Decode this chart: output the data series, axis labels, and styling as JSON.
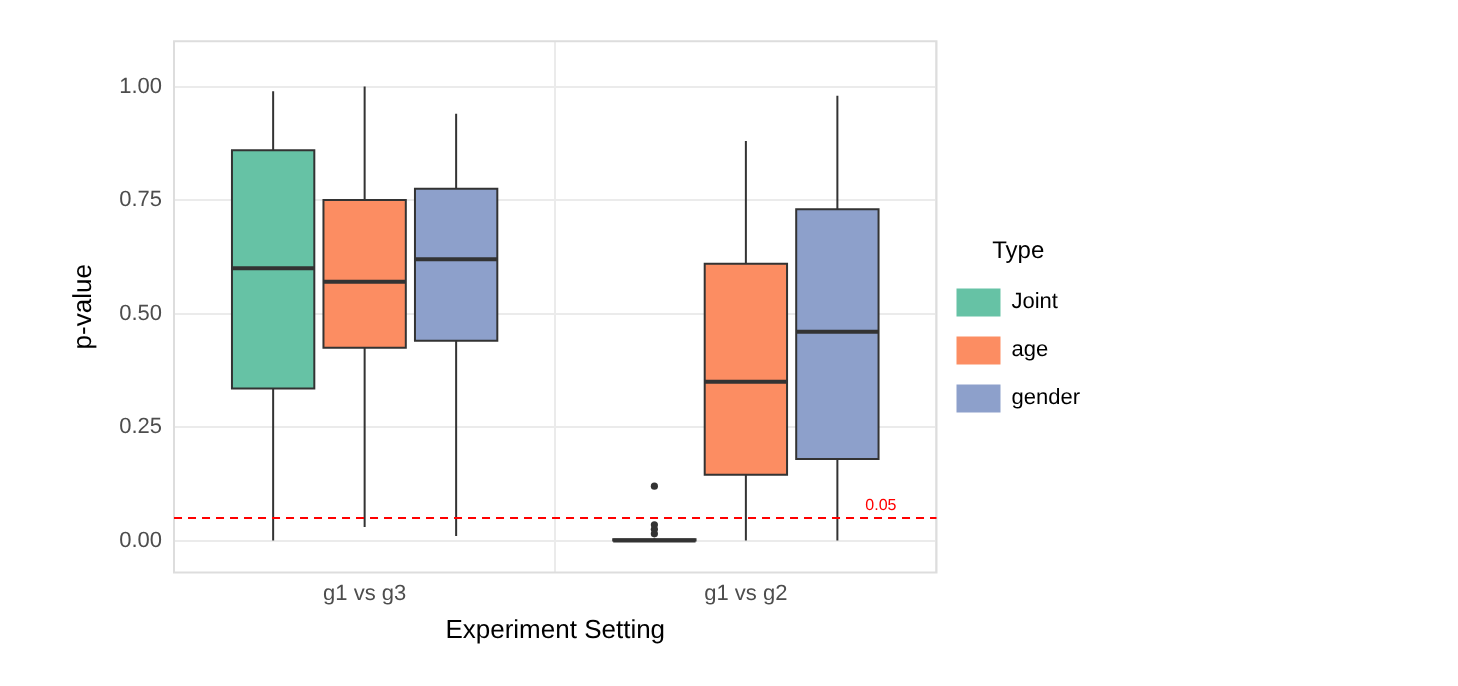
{
  "chart_data": {
    "type": "box",
    "xlabel": "Experiment Setting",
    "ylabel": "p-value",
    "legend_title": "Type",
    "categories": [
      "g1 vs g3",
      "g1 vs g2"
    ],
    "series": [
      {
        "name": "Joint",
        "color": "#66c2a5",
        "boxes": [
          {
            "low": 0,
            "q1": 0.335,
            "median": 0.6,
            "q3": 0.86,
            "high": 0.99
          },
          {
            "low": 0,
            "q1": 0,
            "median": 0,
            "q3": 0.003,
            "high": 0.005,
            "outliers": [
              0.12,
              0.035,
              0.025,
              0.015
            ]
          }
        ]
      },
      {
        "name": "age",
        "color": "#fc8d62",
        "boxes": [
          {
            "low": 0.03,
            "q1": 0.425,
            "median": 0.57,
            "q3": 0.75,
            "high": 1.0
          },
          {
            "low": 0,
            "q1": 0.145,
            "median": 0.35,
            "q3": 0.61,
            "high": 0.88
          }
        ]
      },
      {
        "name": "gender",
        "color": "#8da0cb",
        "boxes": [
          {
            "low": 0.01,
            "q1": 0.44,
            "median": 0.62,
            "q3": 0.775,
            "high": 0.94
          },
          {
            "low": 0,
            "q1": 0.18,
            "median": 0.46,
            "q3": 0.73,
            "high": 0.98
          }
        ]
      }
    ],
    "ylim": [
      -0.07,
      1.1
    ],
    "yticks": [
      {
        "value": 0,
        "label": "0.00"
      },
      {
        "value": 0.25,
        "label": "0.25"
      },
      {
        "value": 0.5,
        "label": "0.50"
      },
      {
        "value": 0.75,
        "label": "0.75"
      },
      {
        "value": 1,
        "label": "1.00"
      }
    ],
    "ref_lines": [
      {
        "axis": "y",
        "value": 0.05,
        "label": "0.05",
        "color": "#ff0000",
        "line_style": "dashed"
      }
    ],
    "grid": true,
    "legend": "right"
  }
}
